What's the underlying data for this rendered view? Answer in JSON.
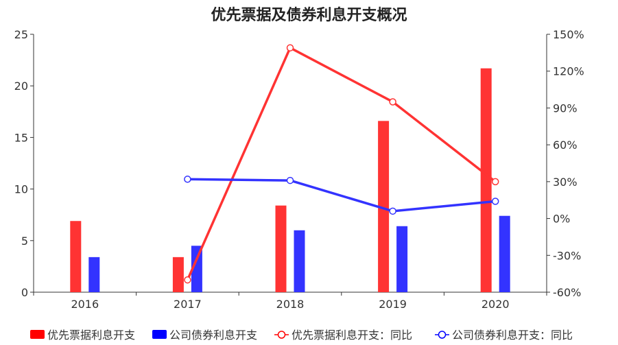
{
  "title": "优先票据及债券利息开支概况",
  "chart_data": {
    "type": "bar",
    "title": "优先票据及债券利息开支概况",
    "categories": [
      "2016",
      "2017",
      "2018",
      "2019",
      "2020"
    ],
    "left_axis": {
      "ylim": [
        0,
        25
      ],
      "ticks": [
        0,
        5,
        10,
        15,
        20,
        25
      ]
    },
    "right_axis": {
      "ylim": [
        -60,
        150
      ],
      "ticks": [
        -60,
        -30,
        0,
        30,
        60,
        90,
        120,
        150
      ],
      "unit": "%"
    },
    "series": [
      {
        "name": "优先票据利息开支",
        "type": "bar",
        "axis": "left",
        "color": "#ff3333",
        "values": [
          6.9,
          3.4,
          8.4,
          16.6,
          21.7
        ]
      },
      {
        "name": "公司债券利息开支",
        "type": "bar",
        "axis": "left",
        "color": "#3333ff",
        "values": [
          3.4,
          4.5,
          6.0,
          6.4,
          7.4
        ]
      },
      {
        "name": "优先票据利息开支：同比",
        "type": "line",
        "axis": "right",
        "color": "#ff3333",
        "values": [
          null,
          -50,
          139,
          95,
          30
        ]
      },
      {
        "name": "公司债券利息开支：同比",
        "type": "line",
        "axis": "right",
        "color": "#3333ff",
        "values": [
          null,
          32,
          31,
          6,
          14
        ]
      }
    ],
    "legend_position": "bottom",
    "legend_swatch_colors": [
      "#ff0000",
      "#0000ff",
      "#ff0000",
      "#0000ff"
    ],
    "grid": false
  }
}
